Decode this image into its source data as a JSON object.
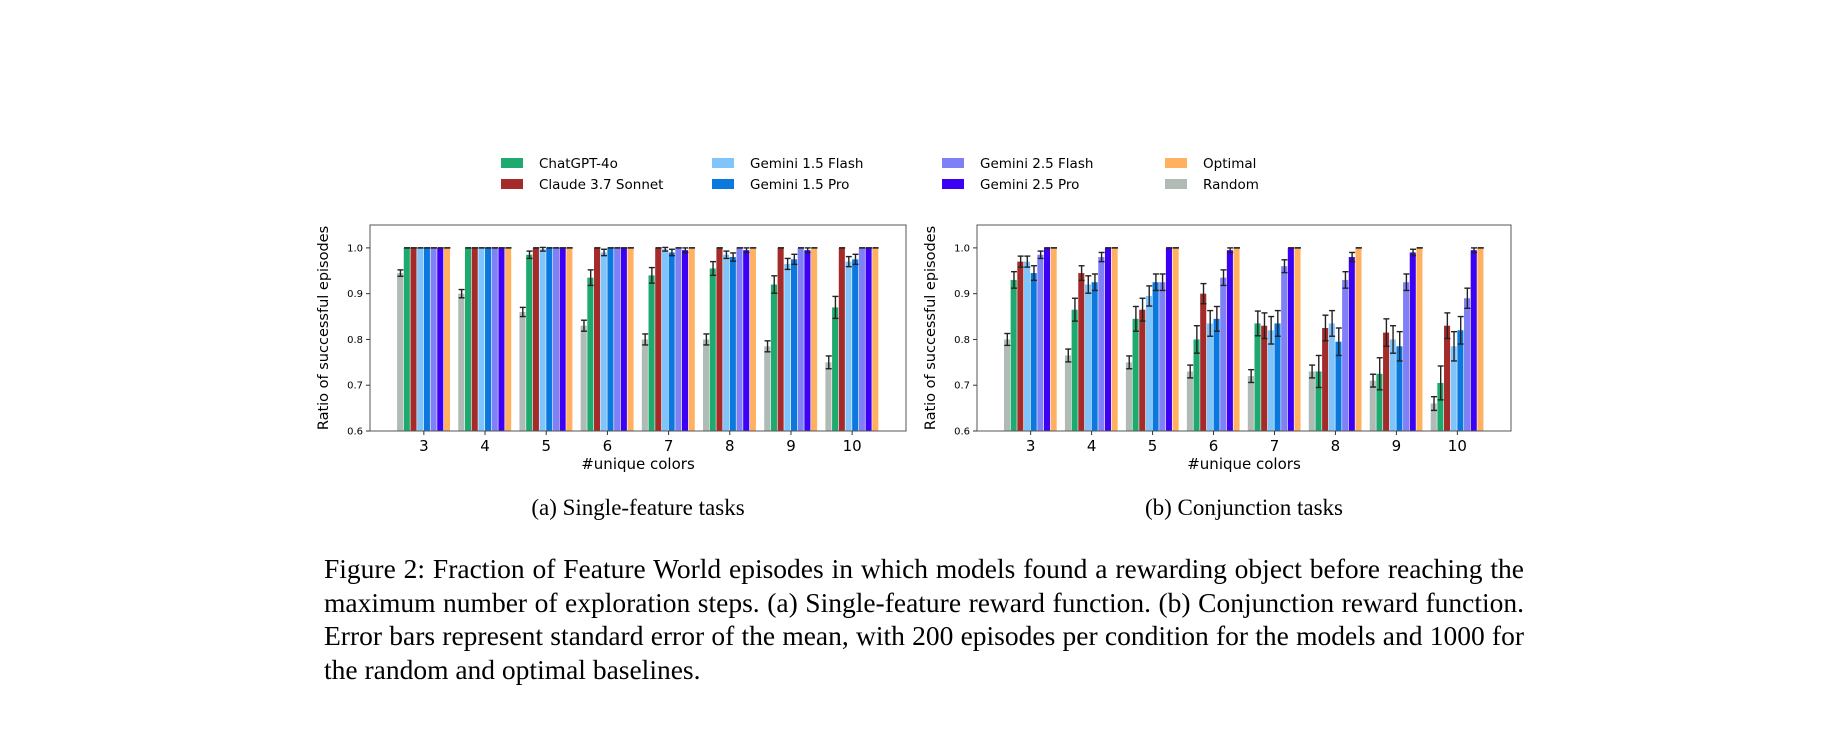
{
  "legend": [
    {
      "name": "ChatGPT-4o",
      "color": "#1eaa6e"
    },
    {
      "name": "Claude 3.7 Sonnet",
      "color": "#a52a2a"
    },
    {
      "name": "Gemini 1.5 Flash",
      "color": "#7fc4fa"
    },
    {
      "name": "Gemini 1.5 Pro",
      "color": "#0a78dc"
    },
    {
      "name": "Gemini 2.5 Flash",
      "color": "#7f80f5"
    },
    {
      "name": "Gemini 2.5 Pro",
      "color": "#3c00f5"
    },
    {
      "name": "Optimal",
      "color": "#ffb060"
    },
    {
      "name": "Random",
      "color": "#b0bbb5"
    }
  ],
  "bar_order": [
    "Random",
    "ChatGPT-4o",
    "Claude 3.7 Sonnet",
    "Gemini 1.5 Flash",
    "Gemini 1.5 Pro",
    "Gemini 2.5 Flash",
    "Gemini 2.5 Pro",
    "Optimal"
  ],
  "chart_data": [
    {
      "type": "bar",
      "subcaption": "(a) Single-feature tasks",
      "xlabel": "#unique colors",
      "ylabel": "Ratio of successful episodes",
      "categories": [
        "3",
        "4",
        "5",
        "6",
        "7",
        "8",
        "9",
        "10"
      ],
      "ylim": [
        0.6,
        1.05
      ],
      "yticks": [
        "0.6",
        "0.7",
        "0.8",
        "0.9",
        "1.0"
      ],
      "grid": false,
      "series": [
        {
          "name": "Random",
          "values": [
            0.945,
            0.9,
            0.86,
            0.83,
            0.8,
            0.8,
            0.785,
            0.75
          ],
          "err": [
            0.007,
            0.009,
            0.01,
            0.012,
            0.012,
            0.012,
            0.012,
            0.014
          ]
        },
        {
          "name": "ChatGPT-4o",
          "values": [
            1,
            1,
            0.985,
            0.935,
            0.94,
            0.955,
            0.92,
            0.87
          ],
          "err": [
            0,
            0,
            0.008,
            0.017,
            0.017,
            0.015,
            0.019,
            0.024
          ]
        },
        {
          "name": "Claude 3.7 Sonnet",
          "values": [
            1,
            1,
            1,
            1,
            1,
            1,
            1,
            1
          ],
          "err": [
            0,
            0,
            0,
            0,
            0,
            0,
            0,
            0
          ]
        },
        {
          "name": "Gemini 1.5 Flash",
          "values": [
            1,
            1,
            0.997,
            0.99,
            0.997,
            0.985,
            0.965,
            0.97
          ],
          "err": [
            0,
            0,
            0.004,
            0.007,
            0.004,
            0.008,
            0.012,
            0.011
          ]
        },
        {
          "name": "Gemini 1.5 Pro",
          "values": [
            1,
            1,
            1,
            1,
            0.99,
            0.98,
            0.975,
            0.975
          ],
          "err": [
            0,
            0,
            0,
            0,
            0.007,
            0.009,
            0.011,
            0.011
          ]
        },
        {
          "name": "Gemini 2.5 Flash",
          "values": [
            1,
            1,
            1,
            1,
            1,
            1,
            1,
            1
          ],
          "err": [
            0,
            0,
            0,
            0,
            0,
            0,
            0,
            0
          ]
        },
        {
          "name": "Gemini 2.5 Pro",
          "values": [
            1,
            1,
            1,
            1,
            0.995,
            0.995,
            0.995,
            1
          ],
          "err": [
            0,
            0,
            0,
            0,
            0.005,
            0.005,
            0.005,
            0
          ]
        },
        {
          "name": "Optimal",
          "values": [
            1,
            1,
            1,
            1,
            1,
            1,
            1,
            1
          ],
          "err": [
            0,
            0,
            0,
            0,
            0,
            0,
            0,
            0
          ]
        }
      ]
    },
    {
      "type": "bar",
      "subcaption": "(b) Conjunction tasks",
      "xlabel": "#unique colors",
      "ylabel": "Ratio of successful episodes",
      "categories": [
        "3",
        "4",
        "5",
        "6",
        "7",
        "8",
        "9",
        "10"
      ],
      "ylim": [
        0.6,
        1.05
      ],
      "yticks": [
        "0.6",
        "0.7",
        "0.8",
        "0.9",
        "1.0"
      ],
      "grid": false,
      "series": [
        {
          "name": "Random",
          "values": [
            0.8,
            0.765,
            0.75,
            0.73,
            0.72,
            0.73,
            0.71,
            0.66
          ],
          "err": [
            0.013,
            0.014,
            0.014,
            0.014,
            0.014,
            0.014,
            0.014,
            0.015
          ]
        },
        {
          "name": "ChatGPT-4o",
          "values": [
            0.93,
            0.865,
            0.845,
            0.8,
            0.835,
            0.73,
            0.725,
            0.705
          ],
          "err": [
            0.018,
            0.025,
            0.027,
            0.03,
            0.027,
            0.035,
            0.035,
            0.037
          ]
        },
        {
          "name": "Claude 3.7 Sonnet",
          "values": [
            0.97,
            0.945,
            0.865,
            0.9,
            0.83,
            0.825,
            0.815,
            0.83
          ],
          "err": [
            0.012,
            0.016,
            0.025,
            0.022,
            0.028,
            0.028,
            0.03,
            0.028
          ]
        },
        {
          "name": "Gemini 1.5 Flash",
          "values": [
            0.97,
            0.92,
            0.895,
            0.835,
            0.82,
            0.835,
            0.8,
            0.785
          ],
          "err": [
            0.012,
            0.019,
            0.022,
            0.028,
            0.03,
            0.028,
            0.03,
            0.032
          ]
        },
        {
          "name": "Gemini 1.5 Pro",
          "values": [
            0.945,
            0.925,
            0.925,
            0.845,
            0.835,
            0.795,
            0.785,
            0.82
          ],
          "err": [
            0.016,
            0.018,
            0.018,
            0.027,
            0.028,
            0.03,
            0.032,
            0.03
          ]
        },
        {
          "name": "Gemini 2.5 Flash",
          "values": [
            0.985,
            0.98,
            0.925,
            0.935,
            0.96,
            0.93,
            0.925,
            0.89
          ],
          "err": [
            0.008,
            0.01,
            0.018,
            0.017,
            0.014,
            0.018,
            0.018,
            0.022
          ]
        },
        {
          "name": "Gemini 2.5 Pro",
          "values": [
            1,
            1,
            1,
            0.995,
            1,
            0.98,
            0.99,
            0.995
          ],
          "err": [
            0,
            0,
            0,
            0.005,
            0,
            0.01,
            0.007,
            0.005
          ]
        },
        {
          "name": "Optimal",
          "values": [
            1,
            1,
            1,
            1,
            1,
            1,
            1,
            1
          ],
          "err": [
            0,
            0,
            0,
            0,
            0,
            0,
            0,
            0
          ]
        }
      ]
    }
  ],
  "figure_caption": "Figure 2: Fraction of Feature World episodes in which models found a rewarding object before reaching the maximum number of exploration steps. (a) Single-feature reward function. (b) Conjunction reward function. Error bars represent standard error of the mean, with 200 episodes per condition for the models and 1000 for the random and optimal baselines."
}
